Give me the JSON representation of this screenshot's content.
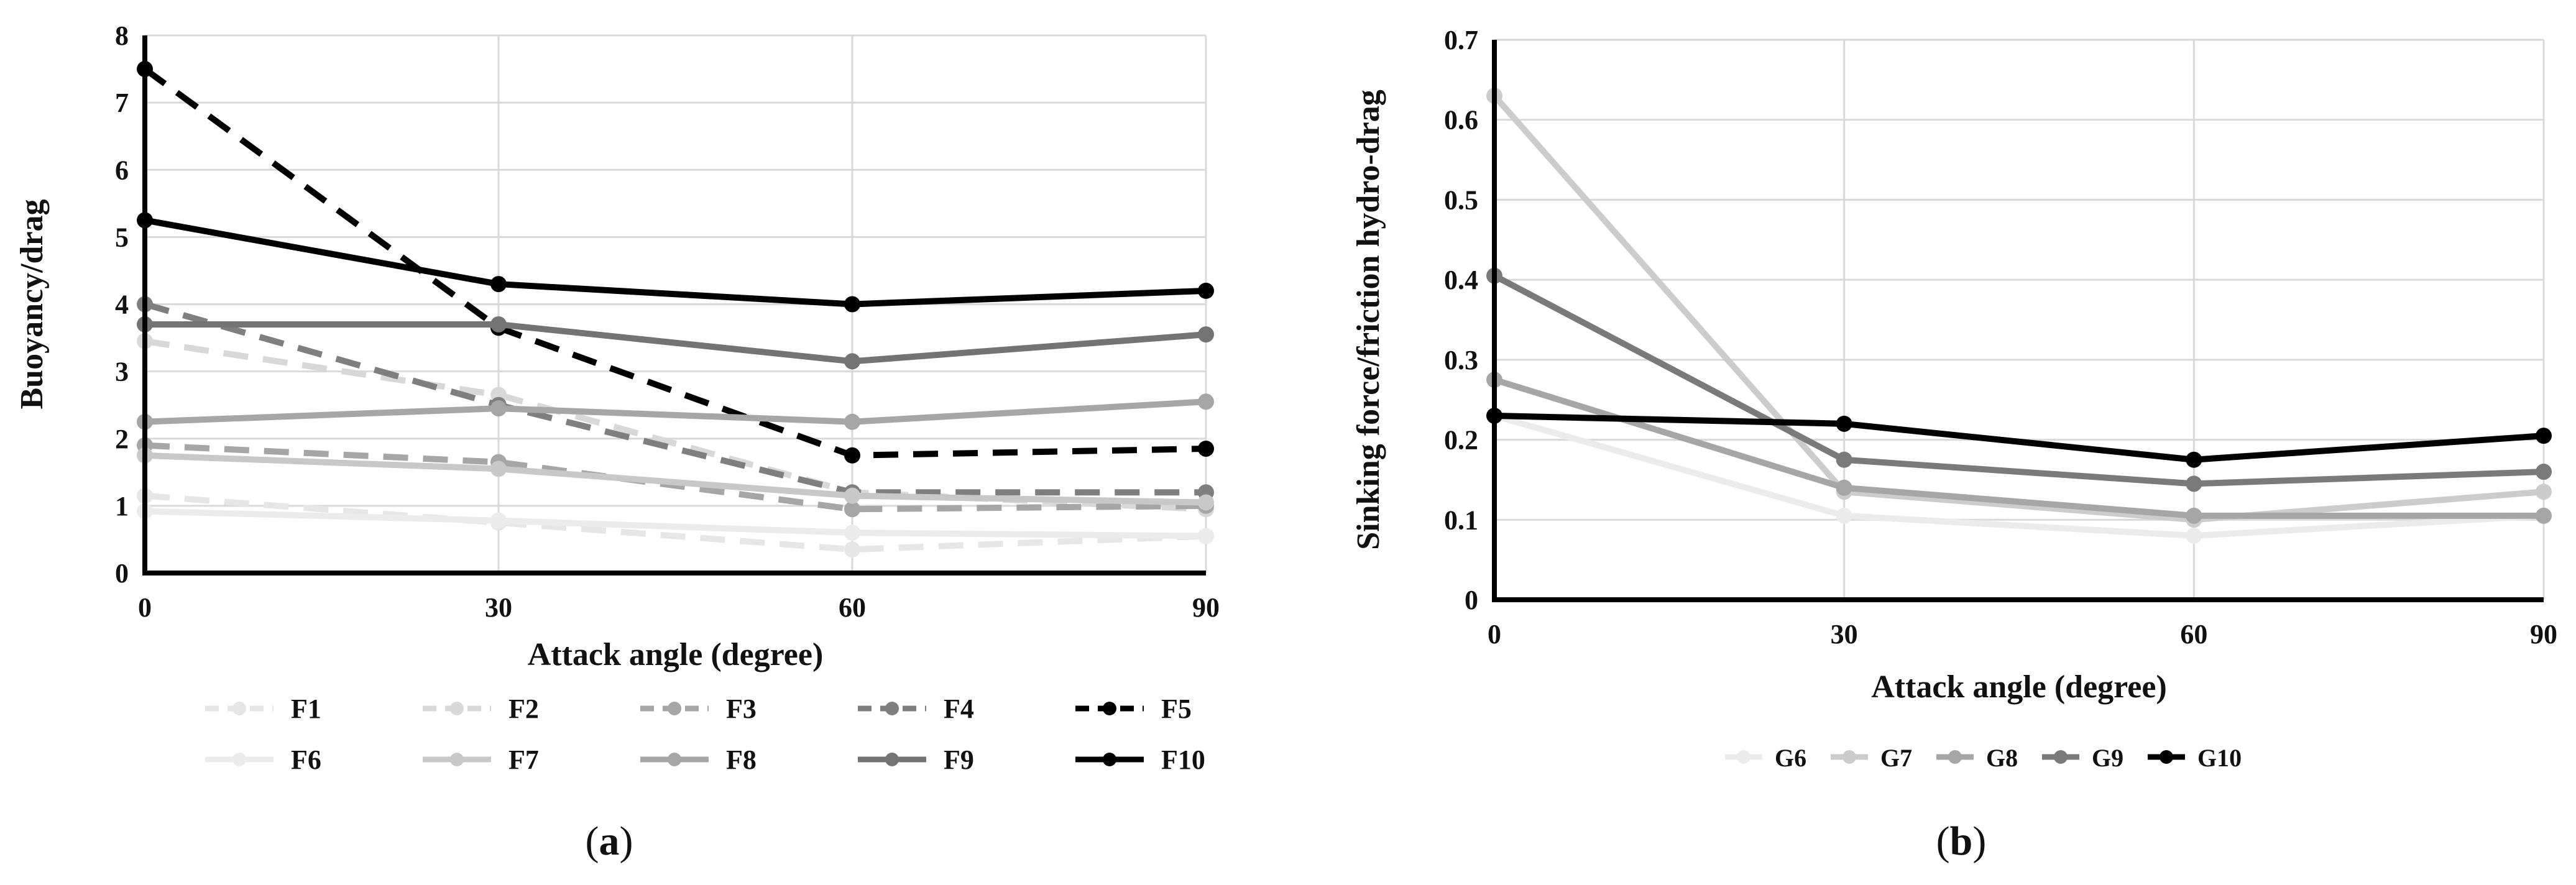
{
  "chart_data": [
    {
      "type": "line",
      "sublabel_open": "(",
      "sublabel_letter": "a",
      "sublabel_close": ")",
      "title": "",
      "xlabel": "Attack angle (degree)",
      "ylabel": "Buoyancy/drag",
      "x": [
        0,
        30,
        60,
        90
      ],
      "xlim": [
        0,
        90
      ],
      "ylim": [
        0,
        8
      ],
      "xticks": [
        0,
        30,
        60,
        90
      ],
      "yticks": [
        0,
        1,
        2,
        3,
        4,
        5,
        6,
        7,
        8
      ],
      "grid": true,
      "legend_position": "bottom",
      "series": [
        {
          "name": "F1",
          "values": [
            1.15,
            0.75,
            0.35,
            0.55
          ],
          "color": "#e6e6e6",
          "dashed": true
        },
        {
          "name": "F2",
          "values": [
            3.45,
            2.65,
            1.2,
            0.95
          ],
          "color": "#d8d8d8",
          "dashed": true
        },
        {
          "name": "F3",
          "values": [
            1.9,
            1.65,
            0.95,
            1.0
          ],
          "color": "#a6a6a6",
          "dashed": true
        },
        {
          "name": "F4",
          "values": [
            4.0,
            2.5,
            1.2,
            1.2
          ],
          "color": "#7f7f7f",
          "dashed": true
        },
        {
          "name": "F5",
          "values": [
            7.5,
            3.65,
            1.75,
            1.85
          ],
          "color": "#000000",
          "dashed": true
        },
        {
          "name": "F6",
          "values": [
            0.92,
            0.78,
            0.6,
            0.55
          ],
          "color": "#ebebeb",
          "dashed": false
        },
        {
          "name": "F7",
          "values": [
            1.75,
            1.55,
            1.15,
            1.05
          ],
          "color": "#c8c8c8",
          "dashed": false
        },
        {
          "name": "F8",
          "values": [
            2.25,
            2.45,
            2.25,
            2.55
          ],
          "color": "#a6a6a6",
          "dashed": false
        },
        {
          "name": "F9",
          "values": [
            3.7,
            3.7,
            3.15,
            3.55
          ],
          "color": "#737373",
          "dashed": false
        },
        {
          "name": "F10",
          "values": [
            5.25,
            4.3,
            4.0,
            4.2
          ],
          "color": "#000000",
          "dashed": false
        }
      ]
    },
    {
      "type": "line",
      "sublabel_open": "(",
      "sublabel_letter": "b",
      "sublabel_close": ")",
      "title": "",
      "xlabel": "Attack angle (degree)",
      "ylabel": "Sinking force/friction hydro-drag",
      "x": [
        0,
        30,
        60,
        90
      ],
      "xlim": [
        0,
        90
      ],
      "ylim": [
        0,
        0.7
      ],
      "xticks": [
        0,
        30,
        60,
        90
      ],
      "yticks": [
        0,
        0.1,
        0.2,
        0.3,
        0.4,
        0.5,
        0.6,
        0.7
      ],
      "grid": true,
      "legend_position": "bottom",
      "series": [
        {
          "name": "G6",
          "values": [
            0.23,
            0.105,
            0.08,
            0.105
          ],
          "color": "#ebebeb",
          "dashed": false
        },
        {
          "name": "G7",
          "values": [
            0.63,
            0.135,
            0.1,
            0.135
          ],
          "color": "#cccccc",
          "dashed": false
        },
        {
          "name": "G8",
          "values": [
            0.275,
            0.14,
            0.105,
            0.105
          ],
          "color": "#a6a6a6",
          "dashed": false
        },
        {
          "name": "G9",
          "values": [
            0.405,
            0.175,
            0.145,
            0.16
          ],
          "color": "#7a7a7a",
          "dashed": false
        },
        {
          "name": "G10",
          "values": [
            0.23,
            0.22,
            0.175,
            0.205
          ],
          "color": "#000000",
          "dashed": false
        }
      ]
    }
  ]
}
